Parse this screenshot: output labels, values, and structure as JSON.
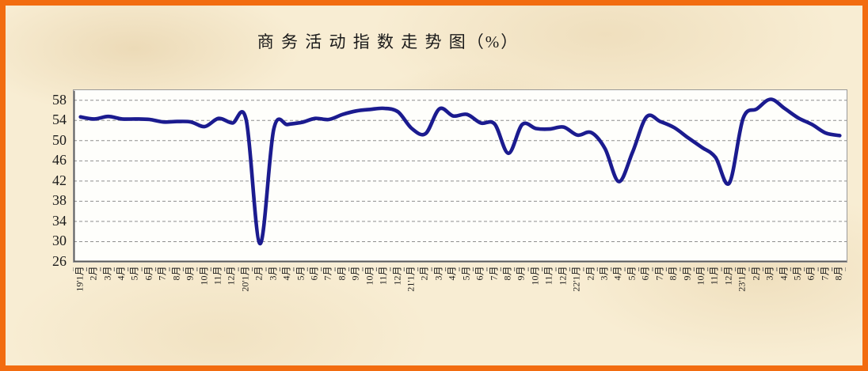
{
  "window": {
    "kind": "chart-image",
    "background_color": "#F8EDD3",
    "border_color": "#F26C10"
  },
  "chart_data": {
    "type": "line",
    "title": "商 务 活 动 指 数 走 势 图（%）",
    "xlabel": "",
    "ylabel": "",
    "ylim": [
      26,
      60
    ],
    "yticks": [
      26,
      30,
      34,
      38,
      42,
      46,
      50,
      54,
      58
    ],
    "grid": "horizontal-dashed",
    "legend_position": "none",
    "line_color": "#1B1B8F",
    "categories": [
      "19'1月",
      "2月",
      "3月",
      "4月",
      "5月",
      "6月",
      "7月",
      "8月",
      "9月",
      "10月",
      "11月",
      "12月",
      "20'1月",
      "2月",
      "3月",
      "4月",
      "5月",
      "6月",
      "7月",
      "8月",
      "9月",
      "10月",
      "11月",
      "12月",
      "21'1月",
      "2月",
      "3月",
      "4月",
      "5月",
      "6月",
      "7月",
      "8月",
      "9月",
      "10月",
      "11月",
      "12月",
      "22'1月",
      "2月",
      "3月",
      "4月",
      "5月",
      "6月",
      "7月",
      "8月",
      "9月",
      "10月",
      "11月",
      "12月",
      "23'1月",
      "2月",
      "3月",
      "4月",
      "5月",
      "6月",
      "7月",
      "8月"
    ],
    "series": [
      {
        "name": "商务活动指数",
        "values": [
          54.7,
          54.3,
          54.8,
          54.3,
          54.3,
          54.2,
          53.7,
          53.8,
          53.7,
          52.8,
          54.4,
          53.5,
          54.1,
          29.6,
          52.3,
          53.2,
          53.6,
          54.4,
          54.2,
          55.2,
          55.9,
          56.2,
          56.4,
          55.7,
          52.4,
          51.4,
          56.3,
          54.9,
          55.2,
          53.5,
          53.3,
          47.5,
          53.2,
          52.4,
          52.3,
          52.7,
          51.1,
          51.6,
          48.4,
          41.9,
          47.8,
          54.7,
          53.8,
          52.6,
          50.6,
          48.7,
          46.7,
          41.6,
          54.4,
          56.3,
          58.2,
          56.4,
          54.5,
          53.2,
          51.5,
          51.0
        ]
      }
    ]
  }
}
